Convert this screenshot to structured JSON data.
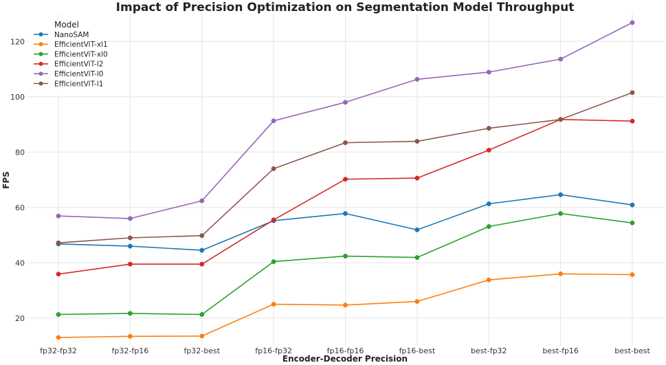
{
  "chart_data": {
    "type": "line",
    "title": "Impact of Precision Optimization on Segmentation Model Throughput",
    "xlabel": "Encoder-Decoder Precision",
    "ylabel": "FPS",
    "ylim": [
      10,
      130
    ],
    "yticks": [
      20,
      40,
      60,
      80,
      100,
      120
    ],
    "grid": true,
    "legend_title": "Model",
    "legend_position": "top-left",
    "categories": [
      "fp32-fp32",
      "fp32-fp16",
      "fp32-best",
      "fp16-fp32",
      "fp16-fp16",
      "fp16-best",
      "best-fp32",
      "best-fp16",
      "best-best"
    ],
    "series": [
      {
        "name": "NanoSAM",
        "color": "#1f77b4",
        "values": [
          46.8,
          46.0,
          44.5,
          55.2,
          57.8,
          51.9,
          61.3,
          64.6,
          60.9
        ]
      },
      {
        "name": "EfficientViT-xl1",
        "color": "#ff7f0e",
        "values": [
          13.0,
          13.4,
          13.5,
          25.0,
          24.7,
          26.0,
          33.8,
          36.0,
          35.7
        ]
      },
      {
        "name": "EfficientViT-xl0",
        "color": "#2ca02c",
        "values": [
          21.3,
          21.7,
          21.3,
          40.4,
          42.4,
          41.9,
          53.1,
          57.8,
          54.4
        ]
      },
      {
        "name": "EfficientViT-l2",
        "color": "#d62728",
        "values": [
          35.9,
          39.5,
          39.5,
          55.5,
          70.2,
          70.6,
          80.7,
          91.8,
          91.2
        ]
      },
      {
        "name": "EfficientViT-l0",
        "color": "#9467bd",
        "values": [
          56.9,
          56.0,
          62.4,
          91.3,
          98.0,
          106.3,
          108.9,
          113.6,
          126.8
        ]
      },
      {
        "name": "EfficientViT-l1",
        "color": "#8c564b",
        "values": [
          47.2,
          49.0,
          49.8,
          74.0,
          83.4,
          83.9,
          88.6,
          91.8,
          101.5
        ]
      }
    ]
  }
}
